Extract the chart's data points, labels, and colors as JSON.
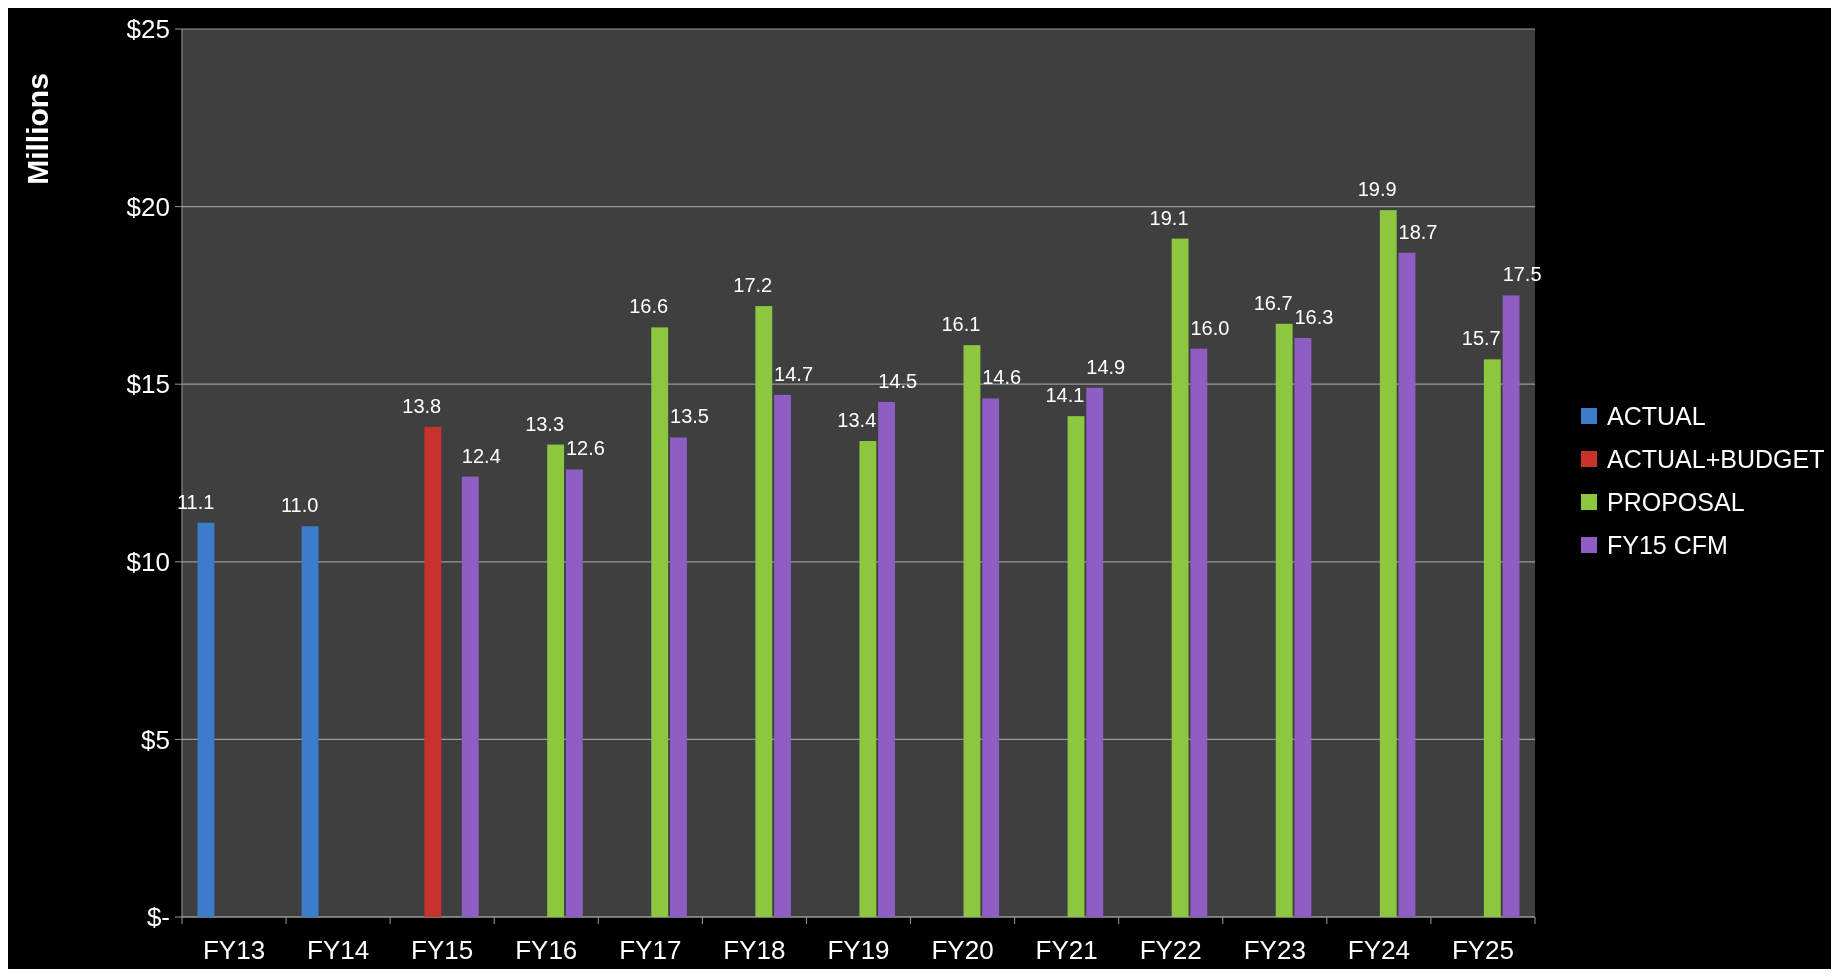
{
  "chart_data": {
    "type": "bar",
    "ylabel": "Millions",
    "categories": [
      "FY13",
      "FY14",
      "FY15",
      "FY16",
      "FY17",
      "FY18",
      "FY19",
      "FY20",
      "FY21",
      "FY22",
      "FY23",
      "FY24",
      "FY25"
    ],
    "series": [
      {
        "name": "ACTUAL",
        "color": "#3b7dcc",
        "values": [
          11.1,
          11.0,
          null,
          null,
          null,
          null,
          null,
          null,
          null,
          null,
          null,
          null,
          null
        ],
        "value_labels": [
          "11.1",
          "11.0",
          null,
          null,
          null,
          null,
          null,
          null,
          null,
          null,
          null,
          null,
          null
        ]
      },
      {
        "name": "ACTUAL+BUDGET",
        "color": "#c8322c",
        "values": [
          null,
          null,
          13.8,
          null,
          null,
          null,
          null,
          null,
          null,
          null,
          null,
          null,
          null
        ],
        "value_labels": [
          null,
          null,
          "13.8",
          null,
          null,
          null,
          null,
          null,
          null,
          null,
          null,
          null,
          null
        ]
      },
      {
        "name": "PROPOSAL",
        "color": "#8dc63f",
        "values": [
          null,
          null,
          null,
          13.3,
          16.6,
          17.2,
          13.4,
          16.1,
          14.1,
          19.1,
          16.7,
          19.9,
          15.7
        ],
        "value_labels": [
          null,
          null,
          null,
          "13.3",
          "16.6",
          "17.2",
          "13.4",
          "16.1",
          "14.1",
          "19.1",
          "16.7",
          "19.9",
          "15.7"
        ]
      },
      {
        "name": "FY15 CFM",
        "color": "#8f5ec4",
        "values": [
          null,
          null,
          12.4,
          12.6,
          13.5,
          14.7,
          14.5,
          14.6,
          14.9,
          16.0,
          16.3,
          18.7,
          17.5
        ],
        "value_labels": [
          null,
          null,
          "12.4",
          "12.6",
          "13.5",
          "14.7",
          "14.5",
          "14.6",
          "14.9",
          "16.0",
          "16.3",
          "18.7",
          "17.5"
        ]
      }
    ],
    "ylim": [
      0,
      25
    ],
    "yticks": [
      {
        "value": 0,
        "label": "$-"
      },
      {
        "value": 5,
        "label": "$5"
      },
      {
        "value": 10,
        "label": "$10"
      },
      {
        "value": 15,
        "label": "$15"
      },
      {
        "value": 20,
        "label": "$20"
      },
      {
        "value": 25,
        "label": "$25"
      }
    ],
    "grid": "y",
    "legend": "right"
  }
}
